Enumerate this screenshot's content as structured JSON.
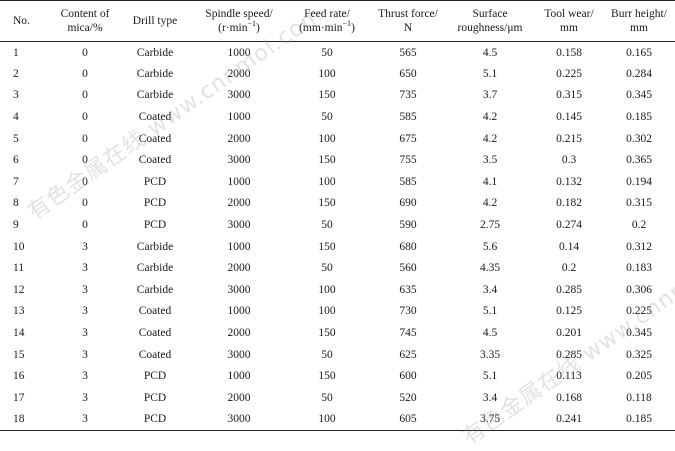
{
  "table": {
    "headers": {
      "no": "No.",
      "mica_line1": "Content of",
      "mica_line2": "mica/%",
      "drill": "Drill type",
      "speed_line1": "Spindle speed/",
      "speed_line2": "(r·min",
      "speed_sup": "−1",
      "speed_close": ")",
      "feed_line1": "Feed rate/",
      "feed_line2": "(mm·min",
      "feed_sup": "−1",
      "feed_close": ")",
      "thrust_line1": "Thrust force/",
      "thrust_line2": "N",
      "rough_line1": "Surface",
      "rough_line2": "roughness/μm",
      "wear_line1": "Tool wear/",
      "wear_line2": "mm",
      "burr_line1": "Burr height/",
      "burr_line2": "mm"
    },
    "rows": [
      [
        "1",
        "0",
        "Carbide",
        "1000",
        "50",
        "565",
        "4.5",
        "0.158",
        "0.165"
      ],
      [
        "2",
        "0",
        "Carbide",
        "2000",
        "100",
        "650",
        "5.1",
        "0.225",
        "0.284"
      ],
      [
        "3",
        "0",
        "Carbide",
        "3000",
        "150",
        "735",
        "3.7",
        "0.315",
        "0.345"
      ],
      [
        "4",
        "0",
        "Coated",
        "1000",
        "50",
        "585",
        "4.2",
        "0.145",
        "0.185"
      ],
      [
        "5",
        "0",
        "Coated",
        "2000",
        "100",
        "675",
        "4.2",
        "0.215",
        "0.302"
      ],
      [
        "6",
        "0",
        "Coated",
        "3000",
        "150",
        "755",
        "3.5",
        "0.3",
        "0.365"
      ],
      [
        "7",
        "0",
        "PCD",
        "1000",
        "100",
        "585",
        "4.1",
        "0.132",
        "0.194"
      ],
      [
        "8",
        "0",
        "PCD",
        "2000",
        "150",
        "690",
        "4.2",
        "0.182",
        "0.315"
      ],
      [
        "9",
        "0",
        "PCD",
        "3000",
        "50",
        "590",
        "2.75",
        "0.274",
        "0.2"
      ],
      [
        "10",
        "3",
        "Carbide",
        "1000",
        "150",
        "680",
        "5.6",
        "0.14",
        "0.312"
      ],
      [
        "11",
        "3",
        "Carbide",
        "2000",
        "50",
        "560",
        "4.35",
        "0.2",
        "0.183"
      ],
      [
        "12",
        "3",
        "Carbide",
        "3000",
        "100",
        "635",
        "3.4",
        "0.285",
        "0.306"
      ],
      [
        "13",
        "3",
        "Coated",
        "1000",
        "100",
        "730",
        "5.1",
        "0.125",
        "0.225"
      ],
      [
        "14",
        "3",
        "Coated",
        "2000",
        "150",
        "745",
        "4.5",
        "0.201",
        "0.345"
      ],
      [
        "15",
        "3",
        "Coated",
        "3000",
        "50",
        "625",
        "3.35",
        "0.285",
        "0.325"
      ],
      [
        "16",
        "3",
        "PCD",
        "1000",
        "150",
        "600",
        "5.1",
        "0.113",
        "0.205"
      ],
      [
        "17",
        "3",
        "PCD",
        "2000",
        "50",
        "520",
        "3.4",
        "0.168",
        "0.118"
      ],
      [
        "18",
        "3",
        "PCD",
        "3000",
        "100",
        "605",
        "3.75",
        "0.241",
        "0.185"
      ]
    ]
  },
  "watermark": {
    "chinese": "有色金属在线",
    "url": "www.cnnmol.com"
  }
}
